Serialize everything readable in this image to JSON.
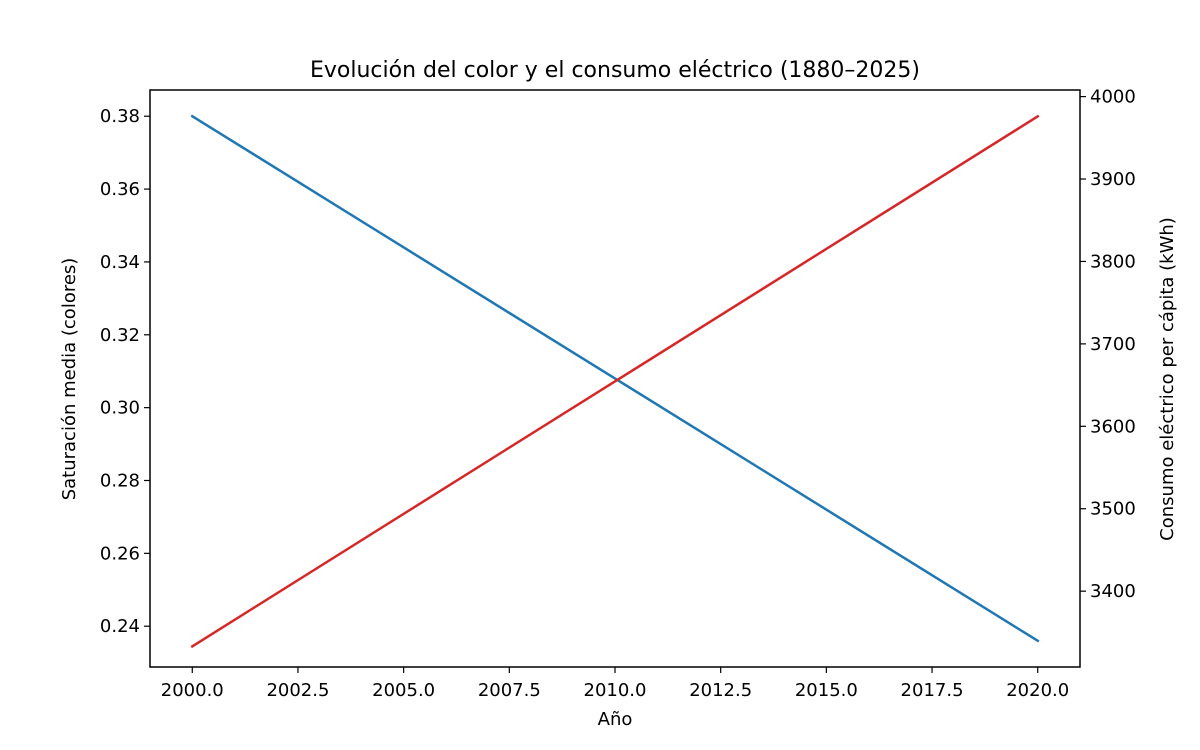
{
  "chart_data": {
    "type": "line",
    "title": "Evolución del color y el consumo eléctrico (1880–2025)",
    "xlabel": "Año",
    "ylabel": "Saturación media (colores)",
    "y2label": "Consumo eléctrico per cápita (kWh)",
    "xlim": [
      1999,
      2021
    ],
    "ylim": [
      0.2288,
      0.3872
    ],
    "y2lim": [
      3308,
      4008
    ],
    "x_ticks": [
      2000.0,
      2002.5,
      2005.0,
      2007.5,
      2010.0,
      2012.5,
      2015.0,
      2017.5,
      2020.0
    ],
    "x_tick_labels": [
      "2000.0",
      "2002.5",
      "2005.0",
      "2007.5",
      "2010.0",
      "2012.5",
      "2015.0",
      "2017.5",
      "2020.0"
    ],
    "y_ticks": [
      0.24,
      0.26,
      0.28,
      0.3,
      0.32,
      0.34,
      0.36,
      0.38
    ],
    "y_tick_labels": [
      "0.24",
      "0.26",
      "0.28",
      "0.30",
      "0.32",
      "0.34",
      "0.36",
      "0.38"
    ],
    "y2_ticks": [
      3400,
      3500,
      3600,
      3700,
      3800,
      3900,
      4000
    ],
    "y2_tick_labels": [
      "3400",
      "3500",
      "3600",
      "3700",
      "3800",
      "3900",
      "4000"
    ],
    "grid": false,
    "legend": "none",
    "series": [
      {
        "axis": "left",
        "color": "#1f77b4",
        "x": [
          2000,
          2020
        ],
        "y": [
          0.38,
          0.236
        ]
      },
      {
        "axis": "right",
        "color": "#d62728",
        "x": [
          2000,
          2020
        ],
        "y": [
          3333,
          3976
        ]
      }
    ]
  }
}
